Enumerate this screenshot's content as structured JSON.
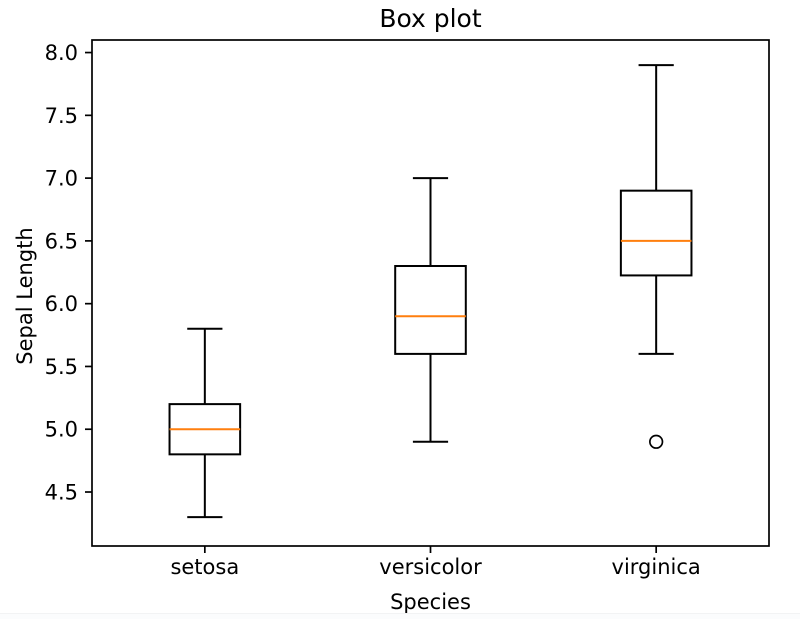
{
  "chart_data": {
    "type": "boxplot",
    "title": "Box plot",
    "xlabel": "Species",
    "ylabel": "Sepal Length",
    "categories": [
      "setosa",
      "versicolor",
      "virginica"
    ],
    "positions": [
      1,
      2,
      3
    ],
    "series": [
      {
        "name": "setosa",
        "whisker_low": 4.3,
        "q1": 4.8,
        "median": 5.0,
        "q3": 5.2,
        "whisker_high": 5.8,
        "outliers": []
      },
      {
        "name": "versicolor",
        "whisker_low": 4.9,
        "q1": 5.6,
        "median": 5.9,
        "q3": 6.3,
        "whisker_high": 7.0,
        "outliers": []
      },
      {
        "name": "virginica",
        "whisker_low": 5.6,
        "q1": 6.225,
        "median": 6.5,
        "q3": 6.9,
        "whisker_high": 7.9,
        "outliers": [
          4.9
        ]
      }
    ],
    "yticks": [
      4.5,
      5.0,
      5.5,
      6.0,
      6.5,
      7.0,
      7.5,
      8.0
    ],
    "ytick_labels": [
      "4.5",
      "5.0",
      "5.5",
      "6.0",
      "6.5",
      "7.0",
      "7.5",
      "8.0"
    ],
    "ylim": [
      4.07,
      8.1
    ],
    "xlim": [
      0.5,
      3.5
    ],
    "grid": false,
    "legend": null,
    "colors": {
      "box_line": "#000000",
      "median_line": "#ff7f0e",
      "spine": "#000000",
      "background": "#ffffff"
    }
  }
}
